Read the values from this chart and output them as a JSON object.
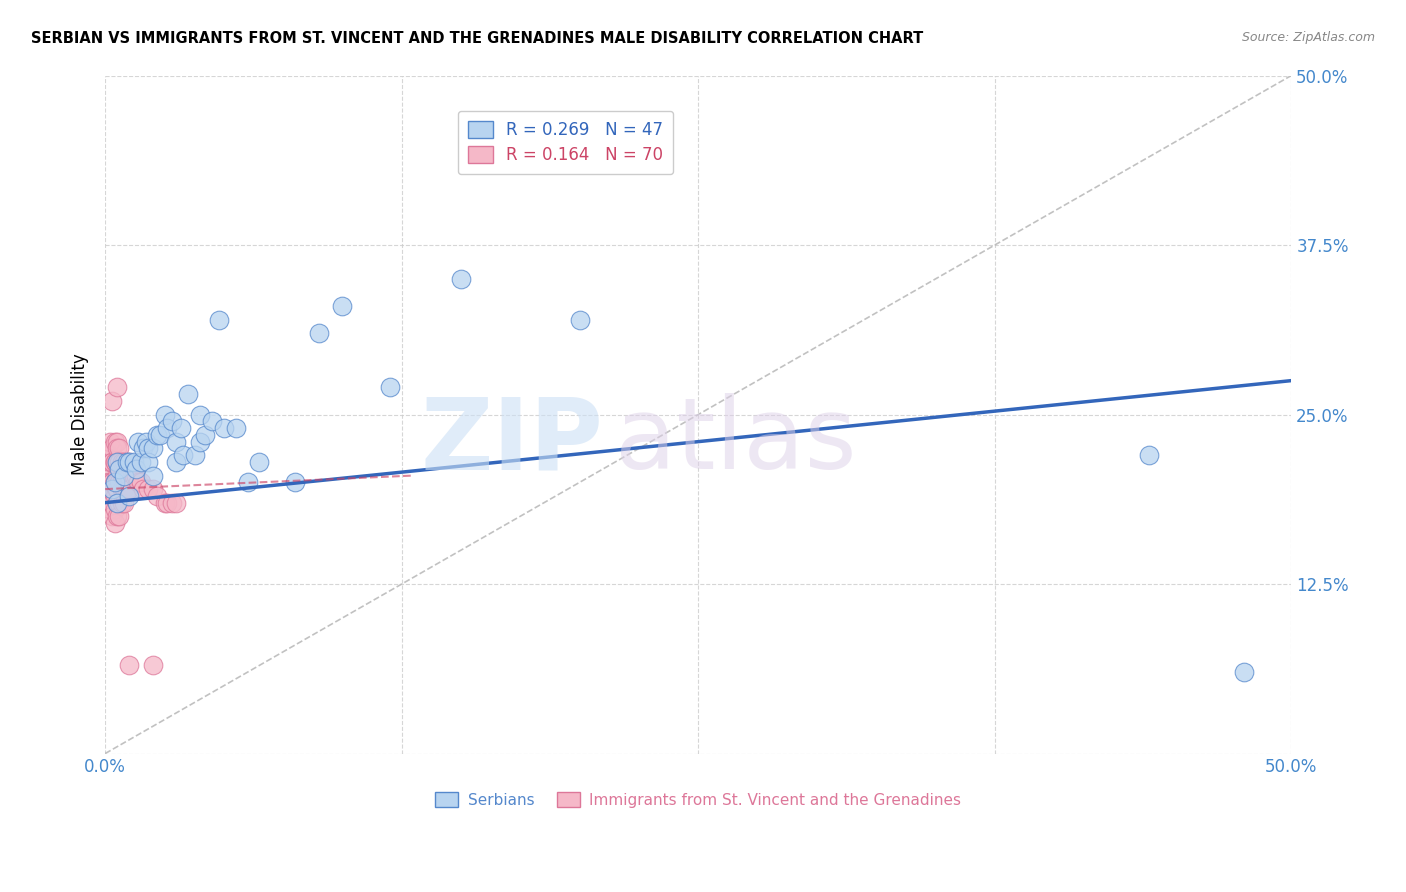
{
  "title": "SERBIAN VS IMMIGRANTS FROM ST. VINCENT AND THE GRENADINES MALE DISABILITY CORRELATION CHART",
  "source": "Source: ZipAtlas.com",
  "ylabel": "Male Disability",
  "xlim": [
    0.0,
    0.5
  ],
  "ylim": [
    0.0,
    0.5
  ],
  "blue_color": "#b8d4f0",
  "blue_edge_color": "#5588cc",
  "blue_line_color": "#3366bb",
  "pink_color": "#f5b8c8",
  "pink_edge_color": "#dd7799",
  "pink_line_color": "#cc4466",
  "axis_tick_color": "#4488cc",
  "grid_color": "#cccccc",
  "ref_line_color": "#bbbbbb",
  "watermark_zip_color": "#cce0f5",
  "watermark_atlas_color": "#ddd0e8",
  "title_fontsize": 10.5,
  "source_fontsize": 9,
  "serbian_x": [
    0.003,
    0.004,
    0.005,
    0.005,
    0.006,
    0.008,
    0.009,
    0.01,
    0.01,
    0.012,
    0.013,
    0.014,
    0.015,
    0.016,
    0.017,
    0.018,
    0.018,
    0.02,
    0.02,
    0.022,
    0.023,
    0.025,
    0.026,
    0.028,
    0.03,
    0.03,
    0.032,
    0.033,
    0.035,
    0.038,
    0.04,
    0.04,
    0.042,
    0.045,
    0.048,
    0.05,
    0.055,
    0.06,
    0.065,
    0.08,
    0.09,
    0.1,
    0.12,
    0.15,
    0.2,
    0.44,
    0.48
  ],
  "serbian_y": [
    0.195,
    0.2,
    0.215,
    0.185,
    0.21,
    0.205,
    0.215,
    0.215,
    0.19,
    0.215,
    0.21,
    0.23,
    0.215,
    0.225,
    0.23,
    0.225,
    0.215,
    0.225,
    0.205,
    0.235,
    0.235,
    0.25,
    0.24,
    0.245,
    0.23,
    0.215,
    0.24,
    0.22,
    0.265,
    0.22,
    0.23,
    0.25,
    0.235,
    0.245,
    0.32,
    0.24,
    0.24,
    0.2,
    0.215,
    0.2,
    0.31,
    0.33,
    0.27,
    0.35,
    0.32,
    0.22,
    0.06
  ],
  "svgrenadines_x": [
    0.001,
    0.001,
    0.001,
    0.001,
    0.002,
    0.002,
    0.002,
    0.002,
    0.002,
    0.002,
    0.003,
    0.003,
    0.003,
    0.003,
    0.003,
    0.003,
    0.003,
    0.004,
    0.004,
    0.004,
    0.004,
    0.004,
    0.004,
    0.004,
    0.004,
    0.005,
    0.005,
    0.005,
    0.005,
    0.005,
    0.005,
    0.005,
    0.005,
    0.005,
    0.005,
    0.006,
    0.006,
    0.006,
    0.006,
    0.006,
    0.007,
    0.007,
    0.007,
    0.007,
    0.008,
    0.008,
    0.008,
    0.008,
    0.009,
    0.009,
    0.01,
    0.01,
    0.01,
    0.011,
    0.012,
    0.013,
    0.014,
    0.015,
    0.016,
    0.018,
    0.02,
    0.022,
    0.025,
    0.026,
    0.028,
    0.03,
    0.003,
    0.005,
    0.01,
    0.02
  ],
  "svgrenadines_y": [
    0.195,
    0.21,
    0.22,
    0.2,
    0.215,
    0.22,
    0.23,
    0.2,
    0.18,
    0.195,
    0.225,
    0.215,
    0.2,
    0.185,
    0.175,
    0.215,
    0.2,
    0.23,
    0.215,
    0.2,
    0.19,
    0.18,
    0.17,
    0.215,
    0.2,
    0.23,
    0.225,
    0.215,
    0.205,
    0.195,
    0.185,
    0.175,
    0.2,
    0.215,
    0.195,
    0.225,
    0.215,
    0.2,
    0.185,
    0.175,
    0.215,
    0.205,
    0.195,
    0.185,
    0.215,
    0.205,
    0.195,
    0.185,
    0.21,
    0.195,
    0.215,
    0.205,
    0.195,
    0.21,
    0.205,
    0.205,
    0.2,
    0.2,
    0.195,
    0.195,
    0.195,
    0.19,
    0.185,
    0.185,
    0.185,
    0.185,
    0.26,
    0.27,
    0.065,
    0.065
  ],
  "blue_trend": [
    0.0,
    0.5,
    0.185,
    0.275
  ],
  "ref_line": [
    0.0,
    0.5,
    0.0,
    0.5
  ],
  "legend_entries": [
    {
      "label": "R = 0.269   N = 47",
      "color": "#3366bb"
    },
    {
      "label": "R = 0.164   N = 70",
      "color": "#cc4466"
    }
  ],
  "bottom_legend": [
    {
      "label": "Serbians",
      "facecolor": "#b8d4f0",
      "edgecolor": "#5588cc"
    },
    {
      "label": "Immigrants from St. Vincent and the Grenadines",
      "facecolor": "#f5b8c8",
      "edgecolor": "#dd7799"
    }
  ]
}
